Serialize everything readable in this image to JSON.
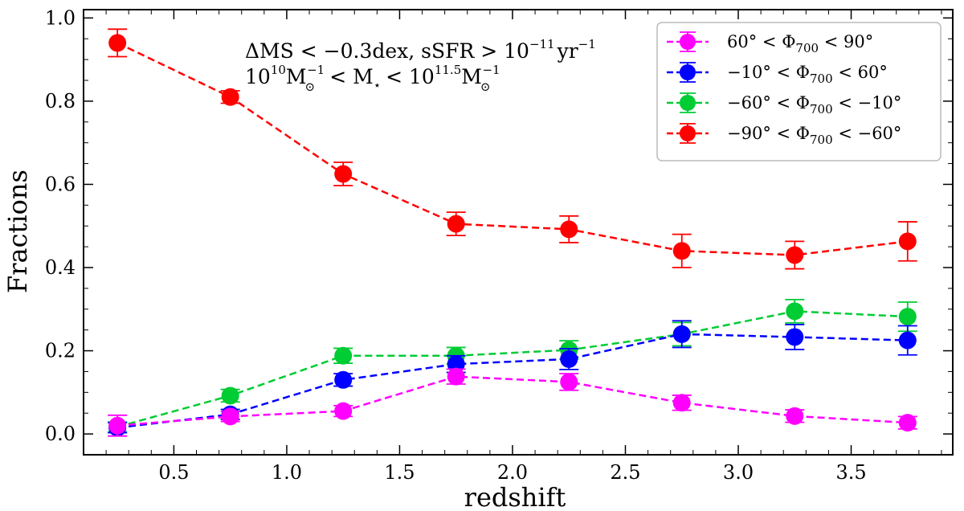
{
  "chart_data": {
    "type": "line",
    "xlabel": "redshift",
    "ylabel": "Fractions",
    "xlim": [
      0.1,
      3.95
    ],
    "ylim": [
      -0.05,
      1.02
    ],
    "xticks": [
      "0.5",
      "1.0",
      "1.5",
      "2.0",
      "2.5",
      "3.0",
      "3.5"
    ],
    "yticks": [
      "0.0",
      "0.2",
      "0.4",
      "0.6",
      "0.8",
      "1.0"
    ],
    "annotation": {
      "line1": {
        "delta": "ΔMS",
        "lt": "<",
        "neg": "−0.3dex, sSFR",
        "gt": ">",
        "base": "10",
        "exp": "−11",
        "unit": "yr",
        "unit_exp": "−1"
      },
      "line2": {
        "base": "10",
        "exp": "10",
        "msun": "M",
        "msun_exp": "−1",
        "lt1": "<",
        "mstar": "M",
        "mstar_sub": "⋆",
        "lt2": "<",
        "base2": "10",
        "exp2": "11.5",
        "msun2": "M",
        "msun2_exp": "−1",
        "sun_sym": "⊙"
      }
    },
    "x": [
      0.25,
      0.75,
      1.25,
      1.75,
      2.25,
      2.75,
      3.25,
      3.75
    ],
    "series": [
      {
        "name": "60° < Φ700 < 90°",
        "legend": {
          "lo": "60°",
          "lt1": "<",
          "phi": "Φ",
          "phi_sub": "700",
          "lt2": "<",
          "hi": "90°"
        },
        "color": "#ff00ff",
        "values": [
          0.02,
          0.042,
          0.055,
          0.138,
          0.125,
          0.075,
          0.043,
          0.027
        ],
        "errors": [
          0.025,
          0.012,
          0.013,
          0.018,
          0.02,
          0.018,
          0.015,
          0.015
        ]
      },
      {
        "name": "−10° < Φ700 < 60°",
        "legend": {
          "lo": "−10°",
          "lt1": "<",
          "phi": "Φ",
          "phi_sub": "700",
          "lt2": "<",
          "hi": "60°"
        },
        "color": "#0000ff",
        "values": [
          0.015,
          0.047,
          0.13,
          0.168,
          0.18,
          0.24,
          0.233,
          0.225
        ],
        "errors": [
          0.012,
          0.012,
          0.015,
          0.02,
          0.025,
          0.032,
          0.03,
          0.035
        ]
      },
      {
        "name": "−60° < Φ700 < −10°",
        "legend": {
          "lo": "−60°",
          "lt1": "<",
          "phi": "Φ",
          "phi_sub": "700",
          "lt2": "<",
          "hi": "−10°"
        },
        "color": "#00cc33",
        "values": [
          0.017,
          0.092,
          0.188,
          0.188,
          0.202,
          0.24,
          0.295,
          0.282
        ],
        "errors": [
          0.012,
          0.015,
          0.018,
          0.02,
          0.022,
          0.028,
          0.028,
          0.035
        ]
      },
      {
        "name": "−90° < Φ700 < −60°",
        "legend": {
          "lo": "−90°",
          "lt1": "<",
          "phi": "Φ",
          "phi_sub": "700",
          "lt2": "<",
          "hi": "−60°"
        },
        "color": "#ff0000",
        "values": [
          0.94,
          0.81,
          0.625,
          0.505,
          0.492,
          0.44,
          0.43,
          0.463
        ],
        "errors": [
          0.033,
          0.015,
          0.028,
          0.028,
          0.032,
          0.04,
          0.033,
          0.047
        ]
      }
    ]
  }
}
